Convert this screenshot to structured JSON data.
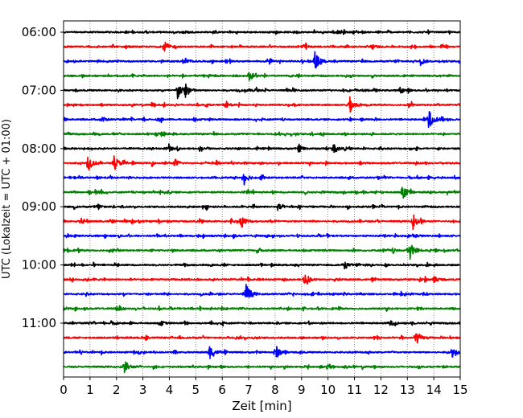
{
  "chart_data": {
    "type": "line",
    "title": "",
    "xlabel": "Zeit  [min]",
    "ylabel": "UTC (Lokalzeit = UTC + 01:00)",
    "xlim": [
      0,
      15
    ],
    "x_ticks": [
      "0",
      "1",
      "2",
      "3",
      "4",
      "5",
      "6",
      "7",
      "8",
      "9",
      "10",
      "11",
      "12",
      "13",
      "14",
      "15"
    ],
    "y_ticks": [
      "06:00",
      "07:00",
      "08:00",
      "09:00",
      "10:00",
      "11:00"
    ],
    "grid": "vertical dotted",
    "trace_colors": [
      "#000000",
      "#ff0000",
      "#0000ff",
      "#008000"
    ],
    "traces": [
      {
        "start": "06:00",
        "color": "#000000",
        "events": [
          [
            4.5,
            0.2
          ]
        ]
      },
      {
        "start": "06:15",
        "color": "#ff0000",
        "events": [
          [
            3.8,
            0.7
          ],
          [
            9.0,
            0.3
          ],
          [
            11.6,
            0.35
          ]
        ]
      },
      {
        "start": "06:30",
        "color": "#0000ff",
        "events": [
          [
            4.6,
            0.35
          ],
          [
            9.5,
            1.2
          ],
          [
            13.5,
            0.45
          ]
        ]
      },
      {
        "start": "06:45",
        "color": "#008000",
        "events": [
          [
            7.0,
            0.6
          ]
        ]
      },
      {
        "start": "07:00",
        "color": "#000000",
        "events": [
          [
            4.3,
            1.1
          ],
          [
            4.6,
            1.0
          ],
          [
            12.7,
            0.4
          ]
        ]
      },
      {
        "start": "07:15",
        "color": "#ff0000",
        "events": [
          [
            10.8,
            1.0
          ],
          [
            6.1,
            0.3
          ]
        ]
      },
      {
        "start": "07:30",
        "color": "#0000ff",
        "events": [
          [
            13.8,
            1.3
          ],
          [
            1.4,
            0.3
          ]
        ]
      },
      {
        "start": "07:45",
        "color": "#008000",
        "events": [
          [
            3.5,
            0.3
          ]
        ]
      },
      {
        "start": "08:00",
        "color": "#000000",
        "events": [
          [
            10.2,
            0.6
          ],
          [
            8.9,
            0.4
          ]
        ]
      },
      {
        "start": "08:15",
        "color": "#ff0000",
        "events": [
          [
            0.9,
            1.1
          ],
          [
            1.9,
            1.0
          ],
          [
            4.2,
            0.5
          ]
        ]
      },
      {
        "start": "08:30",
        "color": "#0000ff",
        "events": [
          [
            6.8,
            0.8
          ]
        ]
      },
      {
        "start": "08:45",
        "color": "#008000",
        "events": [
          [
            12.8,
            1.2
          ],
          [
            1.2,
            0.3
          ]
        ]
      },
      {
        "start": "09:00",
        "color": "#000000",
        "events": [
          [
            8.1,
            0.4
          ],
          [
            1.3,
            0.35
          ]
        ]
      },
      {
        "start": "09:15",
        "color": "#ff0000",
        "events": [
          [
            6.7,
            0.9
          ],
          [
            13.2,
            1.1
          ]
        ]
      },
      {
        "start": "09:30",
        "color": "#0000ff",
        "events": [
          [
            13.2,
            0.3
          ]
        ]
      },
      {
        "start": "09:45",
        "color": "#008000",
        "events": [
          [
            7.3,
            0.4
          ],
          [
            13.1,
            1.2
          ]
        ]
      },
      {
        "start": "10:00",
        "color": "#000000",
        "events": [
          [
            10.6,
            0.3
          ]
        ]
      },
      {
        "start": "10:15",
        "color": "#ff0000",
        "events": [
          [
            9.1,
            0.9
          ],
          [
            14.0,
            0.4
          ]
        ]
      },
      {
        "start": "10:30",
        "color": "#0000ff",
        "events": [
          [
            6.9,
            1.3
          ]
        ]
      },
      {
        "start": "10:45",
        "color": "#008000",
        "events": [
          [
            2.0,
            0.3
          ]
        ]
      },
      {
        "start": "11:00",
        "color": "#000000",
        "events": [
          [
            3.6,
            0.4
          ],
          [
            12.3,
            0.4
          ]
        ]
      },
      {
        "start": "11:15",
        "color": "#ff0000",
        "events": [
          [
            13.3,
            1.0
          ]
        ]
      },
      {
        "start": "11:30",
        "color": "#0000ff",
        "events": [
          [
            5.5,
            0.9
          ],
          [
            8.0,
            1.0
          ],
          [
            14.7,
            0.5
          ]
        ]
      },
      {
        "start": "11:45",
        "color": "#008000",
        "events": [
          [
            2.3,
            0.7
          ]
        ]
      }
    ]
  }
}
